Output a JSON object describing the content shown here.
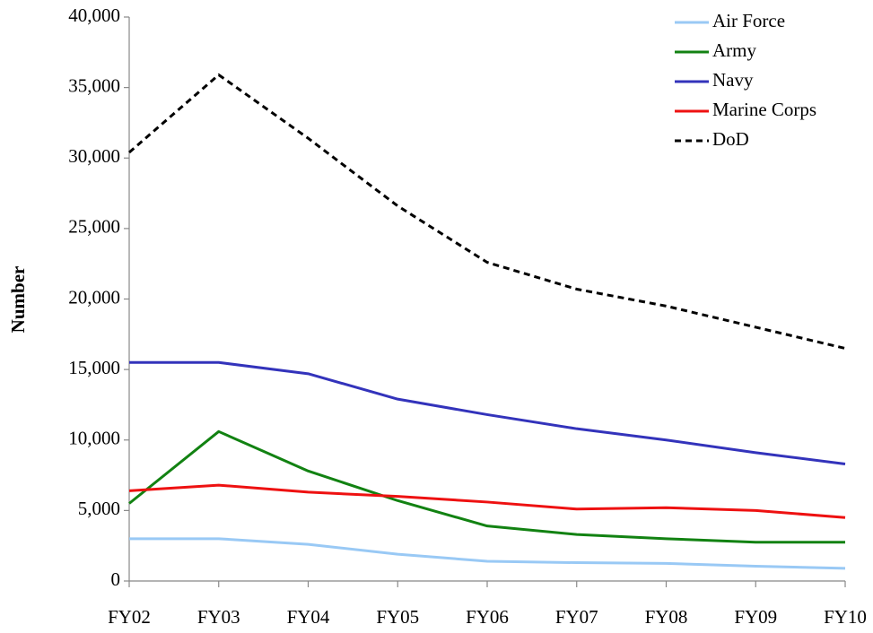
{
  "chart_data": {
    "type": "line",
    "y_label": "Number",
    "categories": [
      "FY02",
      "FY03",
      "FY04",
      "FY05",
      "FY06",
      "FY07",
      "FY08",
      "FY09",
      "FY10"
    ],
    "series": [
      {
        "name": "Air Force",
        "color": "#99c9f5",
        "dashed": false,
        "values": [
          3000,
          3000,
          2600,
          1900,
          1400,
          1300,
          1250,
          1050,
          900
        ]
      },
      {
        "name": "Army",
        "color": "#128212",
        "dashed": false,
        "values": [
          5500,
          10600,
          7800,
          5700,
          3900,
          3300,
          3000,
          2750,
          2750
        ]
      },
      {
        "name": "Navy",
        "color": "#3333bb",
        "dashed": false,
        "values": [
          15500,
          15500,
          14700,
          12900,
          11800,
          10800,
          10000,
          9100,
          8300
        ]
      },
      {
        "name": "Marine Corps",
        "color": "#ee1111",
        "dashed": false,
        "values": [
          6400,
          6800,
          6300,
          6000,
          5600,
          5100,
          5200,
          5000,
          4500
        ]
      },
      {
        "name": "DoD",
        "color": "#000000",
        "dashed": true,
        "values": [
          30400,
          35900,
          31400,
          26600,
          22600,
          20700,
          19500,
          18000,
          16500
        ]
      }
    ],
    "ylim": [
      0,
      40000
    ],
    "yticks": [
      0,
      {
        "value": 5000,
        "label": "5,000"
      },
      {
        "value": 10000,
        "label": "10,000"
      },
      {
        "value": 15000,
        "label": "15,000"
      },
      {
        "value": 20000,
        "label": "20,000"
      },
      {
        "value": 25000,
        "label": "25,000"
      },
      {
        "value": 30000,
        "label": "30,000"
      },
      {
        "value": 35000,
        "label": "35,000"
      },
      {
        "value": 40000,
        "label": "40,000"
      }
    ],
    "grid": false,
    "legend": "top-right"
  }
}
